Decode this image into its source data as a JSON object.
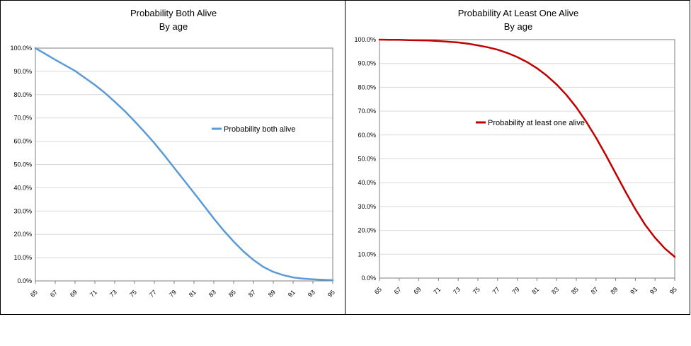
{
  "chart_data": [
    {
      "type": "line",
      "title": "Probability Both Alive",
      "subtitle": "By age",
      "xlabel": "",
      "ylabel": "",
      "ylim": [
        0,
        100
      ],
      "y_ticks": [
        "0.0%",
        "10.0%",
        "20.0%",
        "30.0%",
        "40.0%",
        "50.0%",
        "60.0%",
        "70.0%",
        "80.0%",
        "90.0%",
        "100.0%"
      ],
      "x_ticks": [
        "65",
        "67",
        "69",
        "71",
        "73",
        "75",
        "77",
        "79",
        "81",
        "83",
        "85",
        "87",
        "89",
        "91",
        "93",
        "95"
      ],
      "grid": "horizontal",
      "legend_position": "right",
      "x": [
        65,
        66,
        67,
        68,
        69,
        70,
        71,
        72,
        73,
        74,
        75,
        76,
        77,
        78,
        79,
        80,
        81,
        82,
        83,
        84,
        85,
        86,
        87,
        88,
        89,
        90,
        91,
        92,
        93,
        94,
        95
      ],
      "series": [
        {
          "name": "Probability both alive",
          "color": "#5B9BD5",
          "values": [
            100.0,
            97.5,
            95.0,
            92.6,
            90.2,
            87.2,
            84.2,
            80.8,
            77.0,
            73.0,
            68.6,
            64.0,
            59.2,
            54.0,
            48.6,
            43.2,
            37.8,
            32.3,
            26.8,
            21.6,
            16.9,
            12.6,
            9.0,
            6.0,
            3.9,
            2.5,
            1.5,
            1.0,
            0.7,
            0.5,
            0.3
          ]
        }
      ]
    },
    {
      "type": "line",
      "title": "Probability At Least One Alive",
      "subtitle": "By age",
      "xlabel": "",
      "ylabel": "",
      "ylim": [
        0,
        100
      ],
      "y_ticks": [
        "0.0%",
        "10.0%",
        "20.0%",
        "30.0%",
        "40.0%",
        "50.0%",
        "60.0%",
        "70.0%",
        "80.0%",
        "90.0%",
        "100.0%"
      ],
      "x_ticks": [
        "65",
        "67",
        "69",
        "71",
        "73",
        "75",
        "77",
        "79",
        "81",
        "83",
        "85",
        "87",
        "89",
        "91",
        "93",
        "95"
      ],
      "grid": "horizontal",
      "legend_position": "center",
      "x": [
        65,
        66,
        67,
        68,
        69,
        70,
        71,
        72,
        73,
        74,
        75,
        76,
        77,
        78,
        79,
        80,
        81,
        82,
        83,
        84,
        85,
        86,
        87,
        88,
        89,
        90,
        91,
        92,
        93,
        94,
        95
      ],
      "series": [
        {
          "name": "Probability at least one alive",
          "color": "#C00000",
          "values": [
            100.0,
            99.95,
            99.9,
            99.8,
            99.7,
            99.6,
            99.4,
            99.1,
            98.8,
            98.3,
            97.6,
            96.8,
            95.8,
            94.4,
            92.7,
            90.6,
            88.0,
            84.9,
            81.2,
            76.8,
            71.6,
            65.6,
            58.9,
            51.6,
            43.9,
            36.2,
            28.9,
            22.3,
            16.9,
            12.4,
            8.9
          ]
        }
      ]
    }
  ]
}
